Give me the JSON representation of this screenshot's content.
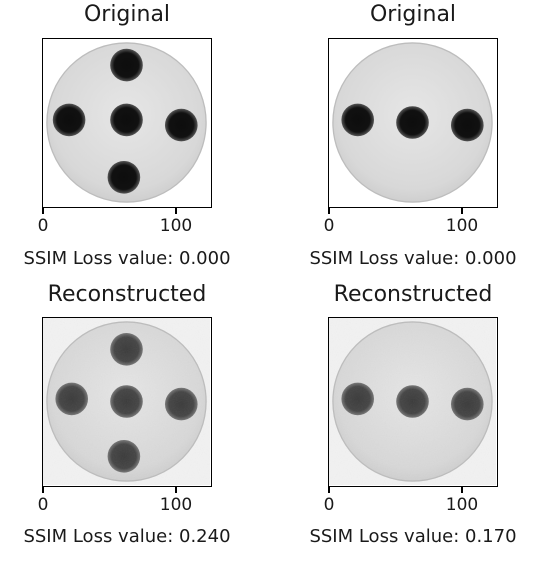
{
  "panels": [
    {
      "title": "Original",
      "xlabel": "SSIM Loss value: 0.000",
      "ticks": [
        "0",
        "100"
      ],
      "kind": "original",
      "blobs": [
        [
          64,
          20
        ],
        [
          20,
          62
        ],
        [
          64,
          62
        ],
        [
          106,
          66
        ],
        [
          62,
          106
        ]
      ]
    },
    {
      "title": "Original",
      "xlabel": "SSIM Loss value: 0.000",
      "ticks": [
        "0",
        "100"
      ],
      "kind": "original",
      "blobs": [
        [
          22,
          62
        ],
        [
          64,
          64
        ],
        [
          106,
          66
        ]
      ]
    },
    {
      "title": "Reconstructed",
      "xlabel": "SSIM Loss value: 0.240",
      "ticks": [
        "0",
        "100"
      ],
      "kind": "reconstructed",
      "blobs": [
        [
          64,
          24
        ],
        [
          22,
          62
        ],
        [
          64,
          64
        ],
        [
          106,
          66
        ],
        [
          62,
          106
        ]
      ]
    },
    {
      "title": "Reconstructed",
      "xlabel": "SSIM Loss value: 0.170",
      "ticks": [
        "0",
        "100"
      ],
      "kind": "reconstructed",
      "blobs": [
        [
          22,
          62
        ],
        [
          64,
          64
        ],
        [
          106,
          66
        ]
      ]
    }
  ],
  "chart_data": {
    "type": "image-grid",
    "x_ticks": [
      0,
      100
    ],
    "image_extent": [
      0,
      128
    ],
    "panels": [
      {
        "title": "Original",
        "ssim_loss": 0.0
      },
      {
        "title": "Original",
        "ssim_loss": 0.0
      },
      {
        "title": "Reconstructed",
        "ssim_loss": 0.24
      },
      {
        "title": "Reconstructed",
        "ssim_loss": 0.17
      }
    ]
  }
}
